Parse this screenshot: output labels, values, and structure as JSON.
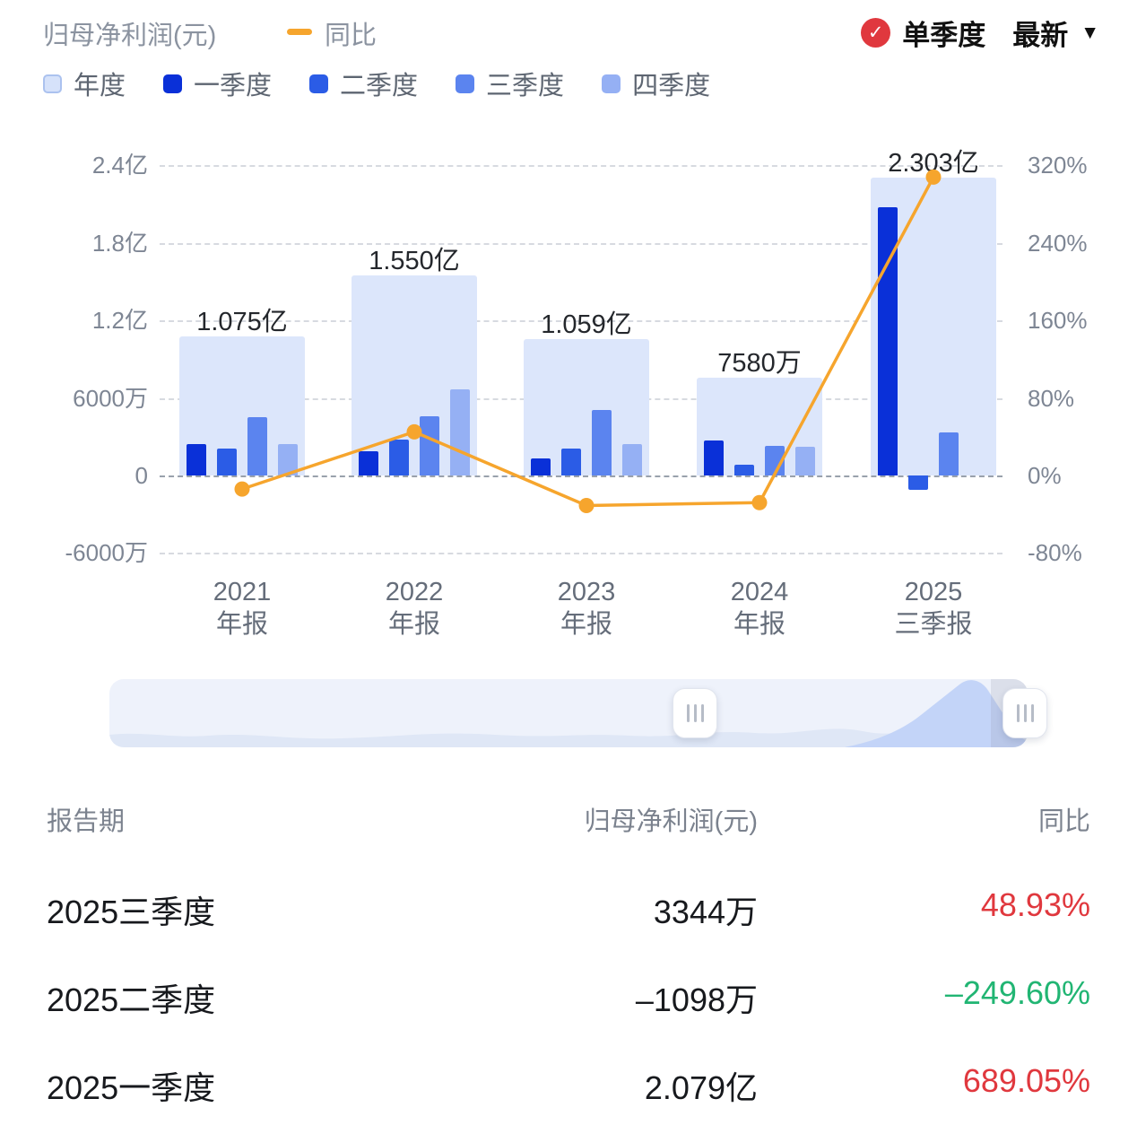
{
  "header": {
    "title": "归母净利润(元)",
    "yoy_label": "同比",
    "quarter_toggle": "单季度",
    "latest_dropdown": "最新"
  },
  "colors": {
    "accent_line": "#f6a52d",
    "positive_red": "#e0383e",
    "negative_green": "#21b573",
    "check_badge": "#e0383e"
  },
  "legend": {
    "items": [
      {
        "label": "年度",
        "color": "#d6e2fa"
      },
      {
        "label": "一季度",
        "color": "#0a30d8"
      },
      {
        "label": "二季度",
        "color": "#2b5ce6"
      },
      {
        "label": "三季度",
        "color": "#5b84ef"
      },
      {
        "label": "四季度",
        "color": "#95b0f4"
      }
    ]
  },
  "chart_data": {
    "type": "bar",
    "title": "归母净利润(元)",
    "categories": [
      "2021年报",
      "2022年报",
      "2023年报",
      "2024年报",
      "2025三季报"
    ],
    "category_lines": [
      [
        "2021",
        "年报"
      ],
      [
        "2022",
        "年报"
      ],
      [
        "2023",
        "年报"
      ],
      [
        "2024",
        "年报"
      ],
      [
        "2025",
        "三季报"
      ]
    ],
    "unit": "亿",
    "series": [
      {
        "name": "年度",
        "role": "annual",
        "color": "#dce6fb",
        "values": [
          1.075,
          1.55,
          1.059,
          0.758,
          2.303
        ],
        "labels": [
          "1.075亿",
          "1.550亿",
          "1.059亿",
          "7580万",
          "2.303亿"
        ]
      },
      {
        "name": "一季度",
        "color": "#0a30d8",
        "values": [
          0.24,
          0.19,
          0.13,
          0.27,
          2.079
        ]
      },
      {
        "name": "二季度",
        "color": "#2b5ce6",
        "values": [
          0.21,
          0.28,
          0.21,
          0.08,
          -0.1098
        ]
      },
      {
        "name": "三季度",
        "color": "#5b84ef",
        "values": [
          0.45,
          0.46,
          0.51,
          0.23,
          0.3344
        ]
      },
      {
        "name": "四季度",
        "color": "#95b0f4",
        "values": [
          0.24,
          0.67,
          0.24,
          0.22,
          null
        ]
      }
    ],
    "line_series": {
      "name": "同比",
      "unit": "%",
      "color": "#f6a52d",
      "values": [
        -14,
        45,
        -31,
        -28,
        308
      ]
    },
    "left_axis": {
      "labels": [
        "2.4亿",
        "1.8亿",
        "1.2亿",
        "6000万",
        "0",
        "-6000万"
      ],
      "values_yi": [
        2.4,
        1.8,
        1.2,
        0.6,
        0,
        -0.6
      ]
    },
    "right_axis": {
      "labels": [
        "320%",
        "240%",
        "160%",
        "80%",
        "0%",
        "-80%"
      ],
      "values_pct": [
        320,
        240,
        160,
        80,
        0,
        -80
      ]
    },
    "ylim_yi": [
      -0.6,
      2.4
    ],
    "ylim_pct": [
      -80,
      320
    ],
    "grid": "dashed-horizontal",
    "legend_position": "top-left"
  },
  "table": {
    "headers": [
      "报告期",
      "归母净利润(元)",
      "同比"
    ],
    "rows": [
      {
        "period": "2025三季度",
        "profit": "3344万",
        "yoy": "48.93%",
        "yoy_color": "#e0383e"
      },
      {
        "period": "2025二季度",
        "profit": "–1098万",
        "yoy": "–249.60%",
        "yoy_color": "#21b573"
      },
      {
        "period": "2025一季度",
        "profit": "2.079亿",
        "yoy": "689.05%",
        "yoy_color": "#e0383e"
      }
    ]
  }
}
